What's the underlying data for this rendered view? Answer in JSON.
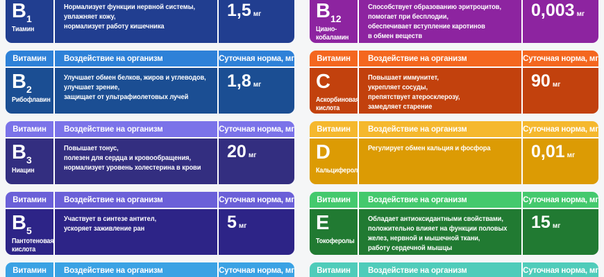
{
  "column_headers": {
    "vitamin": "Витамин",
    "effect": "Воздействие на организм",
    "norm": "Суточная норма, мг"
  },
  "left_cards": [
    {
      "kind": "body-only",
      "letter": "B",
      "letter_sub": "1",
      "name": "Тиамин",
      "effect": "Нормализует функции нервной системы,\nувлажняет кожу,\nнормализует работу кишечника",
      "dose": "1,5",
      "unit": "мг",
      "body_color": "#213e90"
    },
    {
      "kind": "full",
      "letter": "B",
      "letter_sub": "2",
      "name": "Рибофлавин",
      "effect": "Улучшает обмен белков, жиров и углеводов,\nулучшает зрение,\nзащищает от ультрафиолетовых лучей",
      "dose": "1,8",
      "unit": "мг",
      "header_color": "#2e81d8",
      "body_color": "#1b4e93"
    },
    {
      "kind": "full",
      "letter": "B",
      "letter_sub": "3",
      "name": "Ниацин",
      "effect": "Повышает тонус,\nполезен для сердца и кровообращения,\nнормализует уровень холестерина в крови",
      "dose": "20",
      "unit": "мг",
      "header_color": "#7b73e9",
      "body_color": "#332e80"
    },
    {
      "kind": "full",
      "letter": "B",
      "letter_sub": "5",
      "name": "Пантотеновая\nкислота",
      "effect": "Участвует в синтезе антител,\nускоряет заживление ран",
      "dose": "5",
      "unit": "мг",
      "header_color": "#6b60d8",
      "body_color": "#2d2487"
    },
    {
      "kind": "header-only",
      "header_color": "#3aa2e4"
    }
  ],
  "right_cards": [
    {
      "kind": "body-only",
      "letter": "B",
      "letter_sub": "12",
      "name": "Циано-\nкобаламин",
      "effect": "Способствует образованию эритроцитов,\nпомогает при бесплодии,\nобеспечивает вступление каротинов\nв обмен веществ",
      "dose": "0,003",
      "unit": "мг",
      "body_color": "#8d24a0"
    },
    {
      "kind": "full",
      "letter": "C",
      "letter_sub": "",
      "name": "Аскорбиновая\nкислота",
      "effect": "Повышает иммунитет,\nукрепляет сосуды,\nпрепятствует атеросклерозу,\nзамедляет старение",
      "dose": "90",
      "unit": "мг",
      "header_color": "#f4671f",
      "body_color": "#c2410d"
    },
    {
      "kind": "full",
      "letter": "D",
      "letter_sub": "",
      "name": "Кальциферол",
      "effect": "Регулирует обмен кальция и фосфора",
      "dose": "0,01",
      "unit": "мг",
      "header_color": "#f5b82e",
      "body_color": "#dc9b04"
    },
    {
      "kind": "full",
      "letter": "E",
      "letter_sub": "",
      "name": "Токоферолы",
      "effect": "Обладает антиоксидантными свойствами,\nположительно влияет на функции половых\nжелез, нервной и мышечной ткани,\nработу сердечной мышцы",
      "dose": "15",
      "unit": "мг",
      "header_color": "#44c96d",
      "body_color": "#217a32"
    },
    {
      "kind": "header-only",
      "header_color": "#4fccba"
    }
  ],
  "chart_data": {
    "type": "table",
    "title": "Витамины: воздействие на организм и суточная норма",
    "columns": [
      "Витамин",
      "Воздействие на организм",
      "Суточная норма, мг"
    ],
    "rows": [
      [
        "B1 — Тиамин",
        "Нормализует функции нервной системы, увлажняет кожу, нормализует работу кишечника",
        "1,5"
      ],
      [
        "B2 — Рибофлавин",
        "Улучшает обмен белков, жиров и углеводов, улучшает зрение, защищает от ультрафиолетовых лучей",
        "1,8"
      ],
      [
        "B3 — Ниацин",
        "Повышает тонус, полезен для сердца и кровообращения, нормализует уровень холестерина в крови",
        "20"
      ],
      [
        "B5 — Пантотеновая кислота",
        "Участвует в синтезе антител, ускоряет заживление ран",
        "5"
      ],
      [
        "B12 — Цианокобаламин",
        "Способствует образованию эритроцитов, помогает при бесплодии, обеспечивает вступление каротинов в обмен веществ",
        "0,003"
      ],
      [
        "C — Аскорбиновая кислота",
        "Повышает иммунитет, укрепляет сосуды, препятствует атеросклерозу, замедляет старение",
        "90"
      ],
      [
        "D — Кальциферол",
        "Регулирует обмен кальция и фосфора",
        "0,01"
      ],
      [
        "E — Токоферолы",
        "Обладает антиоксидантными свойствами, положительно влияет на функции половых желез, нервной и мышечной ткани, работу сердечной мышцы",
        "15"
      ]
    ]
  }
}
